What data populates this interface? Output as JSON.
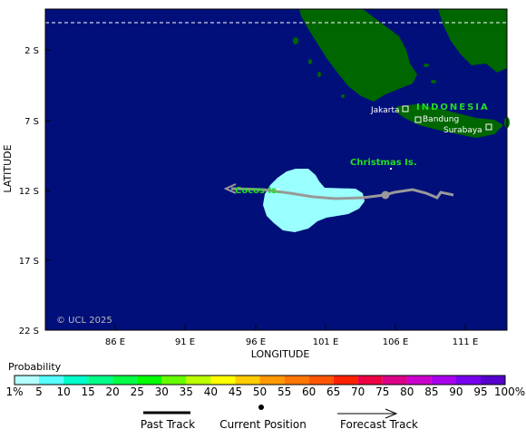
{
  "map": {
    "y_axis_title": "LATITUDE",
    "x_axis_title": "LONGITUDE",
    "y_ticks": [
      "2 S",
      "7 S",
      "12 S",
      "17 S",
      "22 S"
    ],
    "x_ticks": [
      "86 E",
      "91 E",
      "96 E",
      "101 E",
      "106 E",
      "111 E"
    ],
    "copyright": "© UCL 2025",
    "labels": {
      "indonesia": "INDONESIA",
      "christmas": "Christmas Is.",
      "cocos": "Cocos Is.",
      "jakarta": "Jakarta",
      "bandung": "Bandung",
      "surabaya": "Surabaya"
    },
    "colors": {
      "ocean": "#000f7a",
      "land": "#006600",
      "probability_area": "#99ffff",
      "track": "#999999"
    }
  },
  "legend": {
    "title": "Probability",
    "labels": [
      "1%",
      "5",
      "10",
      "15",
      "20",
      "25",
      "30",
      "35",
      "40",
      "45",
      "50",
      "55",
      "60",
      "65",
      "70",
      "75",
      "80",
      "85",
      "90",
      "95",
      "100%"
    ],
    "colors": [
      "#b4ffff",
      "#55ffff",
      "#00ffcc",
      "#00ff88",
      "#00ff44",
      "#00ff00",
      "#66ff00",
      "#bbff00",
      "#ffff00",
      "#ffcc00",
      "#ff9900",
      "#ff7700",
      "#ff5500",
      "#ff2200",
      "#ee0044",
      "#dd0088",
      "#cc00cc",
      "#aa00ee",
      "#7700ee",
      "#5500cc",
      "#440055"
    ],
    "past_track": "Past Track",
    "current_position": "Current Position",
    "forecast_track": "Forecast Track"
  }
}
